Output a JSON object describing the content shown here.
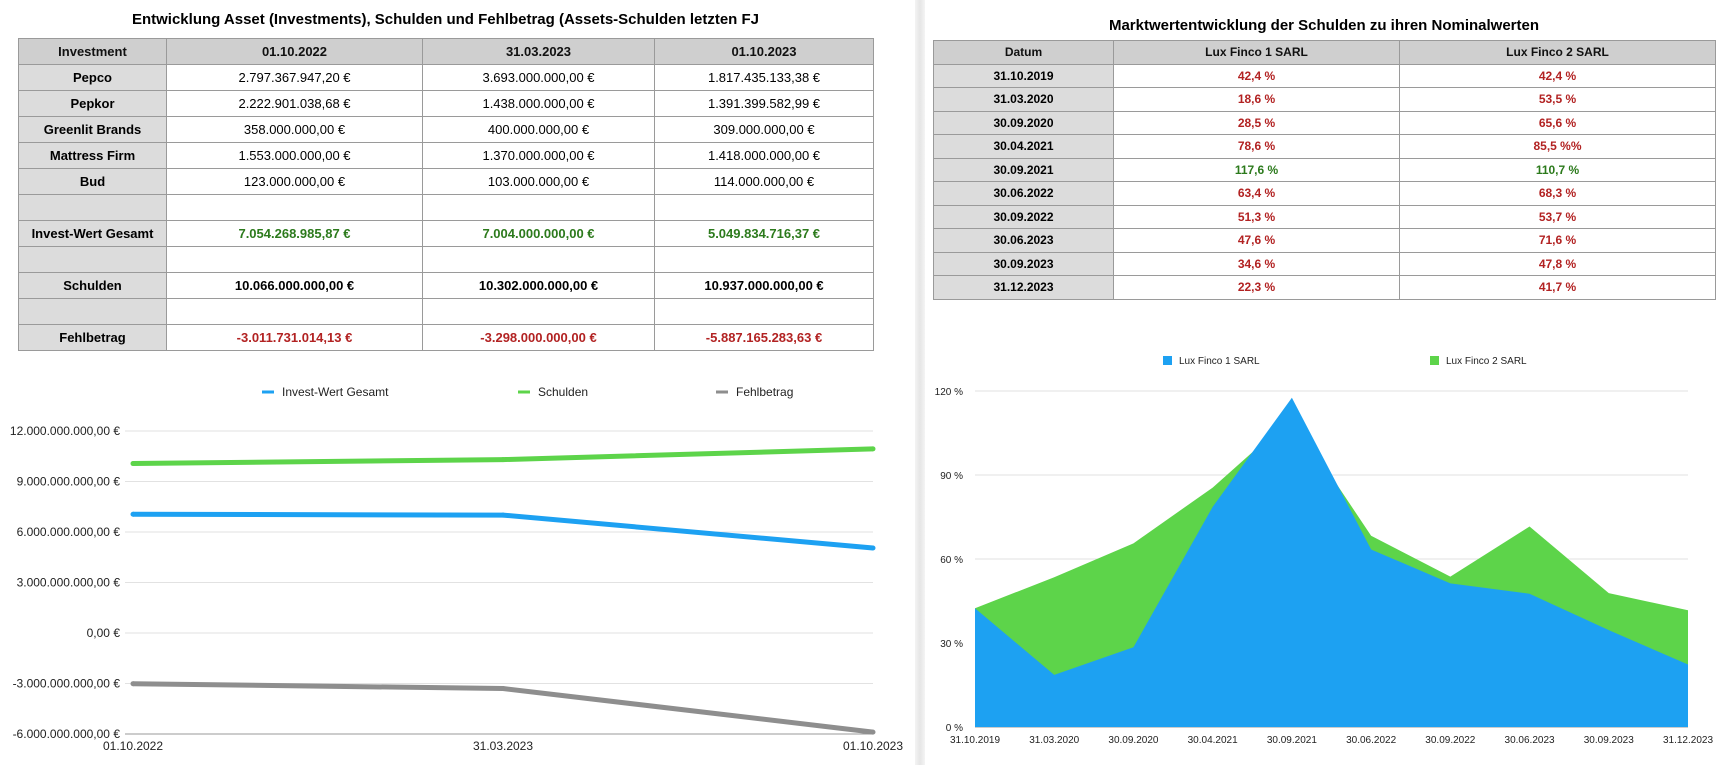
{
  "left": {
    "title": "Entwicklung Asset (Investments), Schulden und Fehlbetrag (Assets-Schulden letzten FJ",
    "table": {
      "headers": [
        "Investment",
        "01.10.2022",
        "31.03.2023",
        "01.10.2023"
      ],
      "rows": [
        {
          "label": "Pepco",
          "values": [
            "2.797.367.947,20 €",
            "3.693.000.000,00 €",
            "1.817.435.133,38 €"
          ]
        },
        {
          "label": "Pepkor",
          "values": [
            "2.222.901.038,68 €",
            "1.438.000.000,00 €",
            "1.391.399.582,99 €"
          ]
        },
        {
          "label": "Greenlit Brands",
          "values": [
            "358.000.000,00 €",
            "400.000.000,00 €",
            "309.000.000,00 €"
          ]
        },
        {
          "label": "Mattress Firm",
          "values": [
            "1.553.000.000,00 €",
            "1.370.000.000,00 €",
            "1.418.000.000,00 €"
          ]
        },
        {
          "label": "Bud",
          "values": [
            "123.000.000,00 €",
            "103.000.000,00 €",
            "114.000.000,00 €"
          ]
        }
      ],
      "invest_label": "Invest-Wert Gesamt",
      "invest_values": [
        "7.054.268.985,87 €",
        "7.004.000.000,00 €",
        "5.049.834.716,37 €"
      ],
      "schulden_label": "Schulden",
      "schulden_values": [
        "10.066.000.000,00 €",
        "10.302.000.000,00 €",
        "10.937.000.000,00 €"
      ],
      "fehl_label": "Fehlbetrag",
      "fehl_values": [
        "-3.011.731.014,13 €",
        "-3.298.000.000,00 €",
        "-5.887.165.283,63 €"
      ]
    }
  },
  "right": {
    "title": "Marktwertentwicklung der Schulden zu ihren Nominalwerten",
    "table": {
      "headers": [
        "Datum",
        "Lux Finco 1 SARL",
        "Lux Finco 2 SARL"
      ],
      "rows": [
        {
          "date": "31.10.2019",
          "v1": "42,4 %",
          "v2": "42,4 %",
          "c1": "red",
          "c2": "red"
        },
        {
          "date": "31.03.2020",
          "v1": "18,6 %",
          "v2": "53,5 %",
          "c1": "red",
          "c2": "red"
        },
        {
          "date": "30.09.2020",
          "v1": "28,5 %",
          "v2": "65,6 %",
          "c1": "red",
          "c2": "red"
        },
        {
          "date": "30.04.2021",
          "v1": "78,6 %",
          "v2": "85,5 %%",
          "c1": "red",
          "c2": "red"
        },
        {
          "date": "30.09.2021",
          "v1": "117,6 %",
          "v2": "110,7 %",
          "c1": "green",
          "c2": "green"
        },
        {
          "date": "30.06.2022",
          "v1": "63,4 %",
          "v2": "68,3 %",
          "c1": "red",
          "c2": "red"
        },
        {
          "date": "30.09.2022",
          "v1": "51,3 %",
          "v2": "53,7 %",
          "c1": "red",
          "c2": "red"
        },
        {
          "date": "30.06.2023",
          "v1": "47,6 %",
          "v2": "71,6 %",
          "c1": "red",
          "c2": "red"
        },
        {
          "date": "30.09.2023",
          "v1": "34,6 %",
          "v2": "47,8 %",
          "c1": "red",
          "c2": "red"
        },
        {
          "date": "31.12.2023",
          "v1": "22,3 %",
          "v2": "41,7 %",
          "c1": "red",
          "c2": "red"
        }
      ]
    }
  },
  "colors": {
    "blue": "#1da1f2",
    "green": "#5dd44a",
    "gray": "#8e8e8e",
    "red_text": "#b22222",
    "green_text": "#2c7a1c"
  },
  "chart_data": [
    {
      "type": "line",
      "title": "",
      "categories": [
        "01.10.2022",
        "31.03.2023",
        "01.10.2023"
      ],
      "series": [
        {
          "name": "Invest-Wert Gesamt",
          "color": "#1da1f2",
          "values": [
            7054268985.87,
            7004000000.0,
            5049834716.37
          ]
        },
        {
          "name": "Schulden",
          "color": "#5dd44a",
          "values": [
            10066000000.0,
            10302000000.0,
            10937000000.0
          ]
        },
        {
          "name": "Fehlbetrag",
          "color": "#8e8e8e",
          "values": [
            -3011731014.13,
            -3298000000.0,
            -5887165283.63
          ]
        }
      ],
      "ylim": [
        -6000000000,
        12000000000
      ],
      "yticks": [
        12000000000,
        9000000000,
        6000000000,
        3000000000,
        0,
        -3000000000,
        -6000000000
      ],
      "ytick_labels": [
        "12.000.000.000,00 €",
        "9.000.000.000,00 €",
        "6.000.000.000,00 €",
        "3.000.000.000,00 €",
        "0,00 €",
        "-3.000.000.000,00 €",
        "-6.000.000.000,00 €"
      ],
      "legend": "top-center",
      "grid": true
    },
    {
      "type": "area",
      "title": "",
      "categories": [
        "31.10.2019",
        "31.03.2020",
        "30.09.2020",
        "30.04.2021",
        "30.09.2021",
        "30.06.2022",
        "30.09.2022",
        "30.06.2023",
        "30.09.2023",
        "31.12.2023"
      ],
      "series": [
        {
          "name": "Lux Finco 1 SARL",
          "color": "#1da1f2",
          "values": [
            42.4,
            18.6,
            28.5,
            78.6,
            117.6,
            63.4,
            51.3,
            47.6,
            34.6,
            22.3
          ]
        },
        {
          "name": "Lux Finco 2 SARL",
          "color": "#5dd44a",
          "values": [
            42.4,
            53.5,
            65.6,
            85.5,
            110.7,
            68.3,
            53.7,
            71.6,
            47.8,
            41.7
          ]
        }
      ],
      "ylim": [
        0,
        120
      ],
      "yticks": [
        0,
        30,
        60,
        90,
        120
      ],
      "ytick_labels": [
        "0 %",
        "30 %",
        "60 %",
        "90 %",
        "120 %"
      ],
      "legend": "top-center",
      "grid": true
    }
  ]
}
